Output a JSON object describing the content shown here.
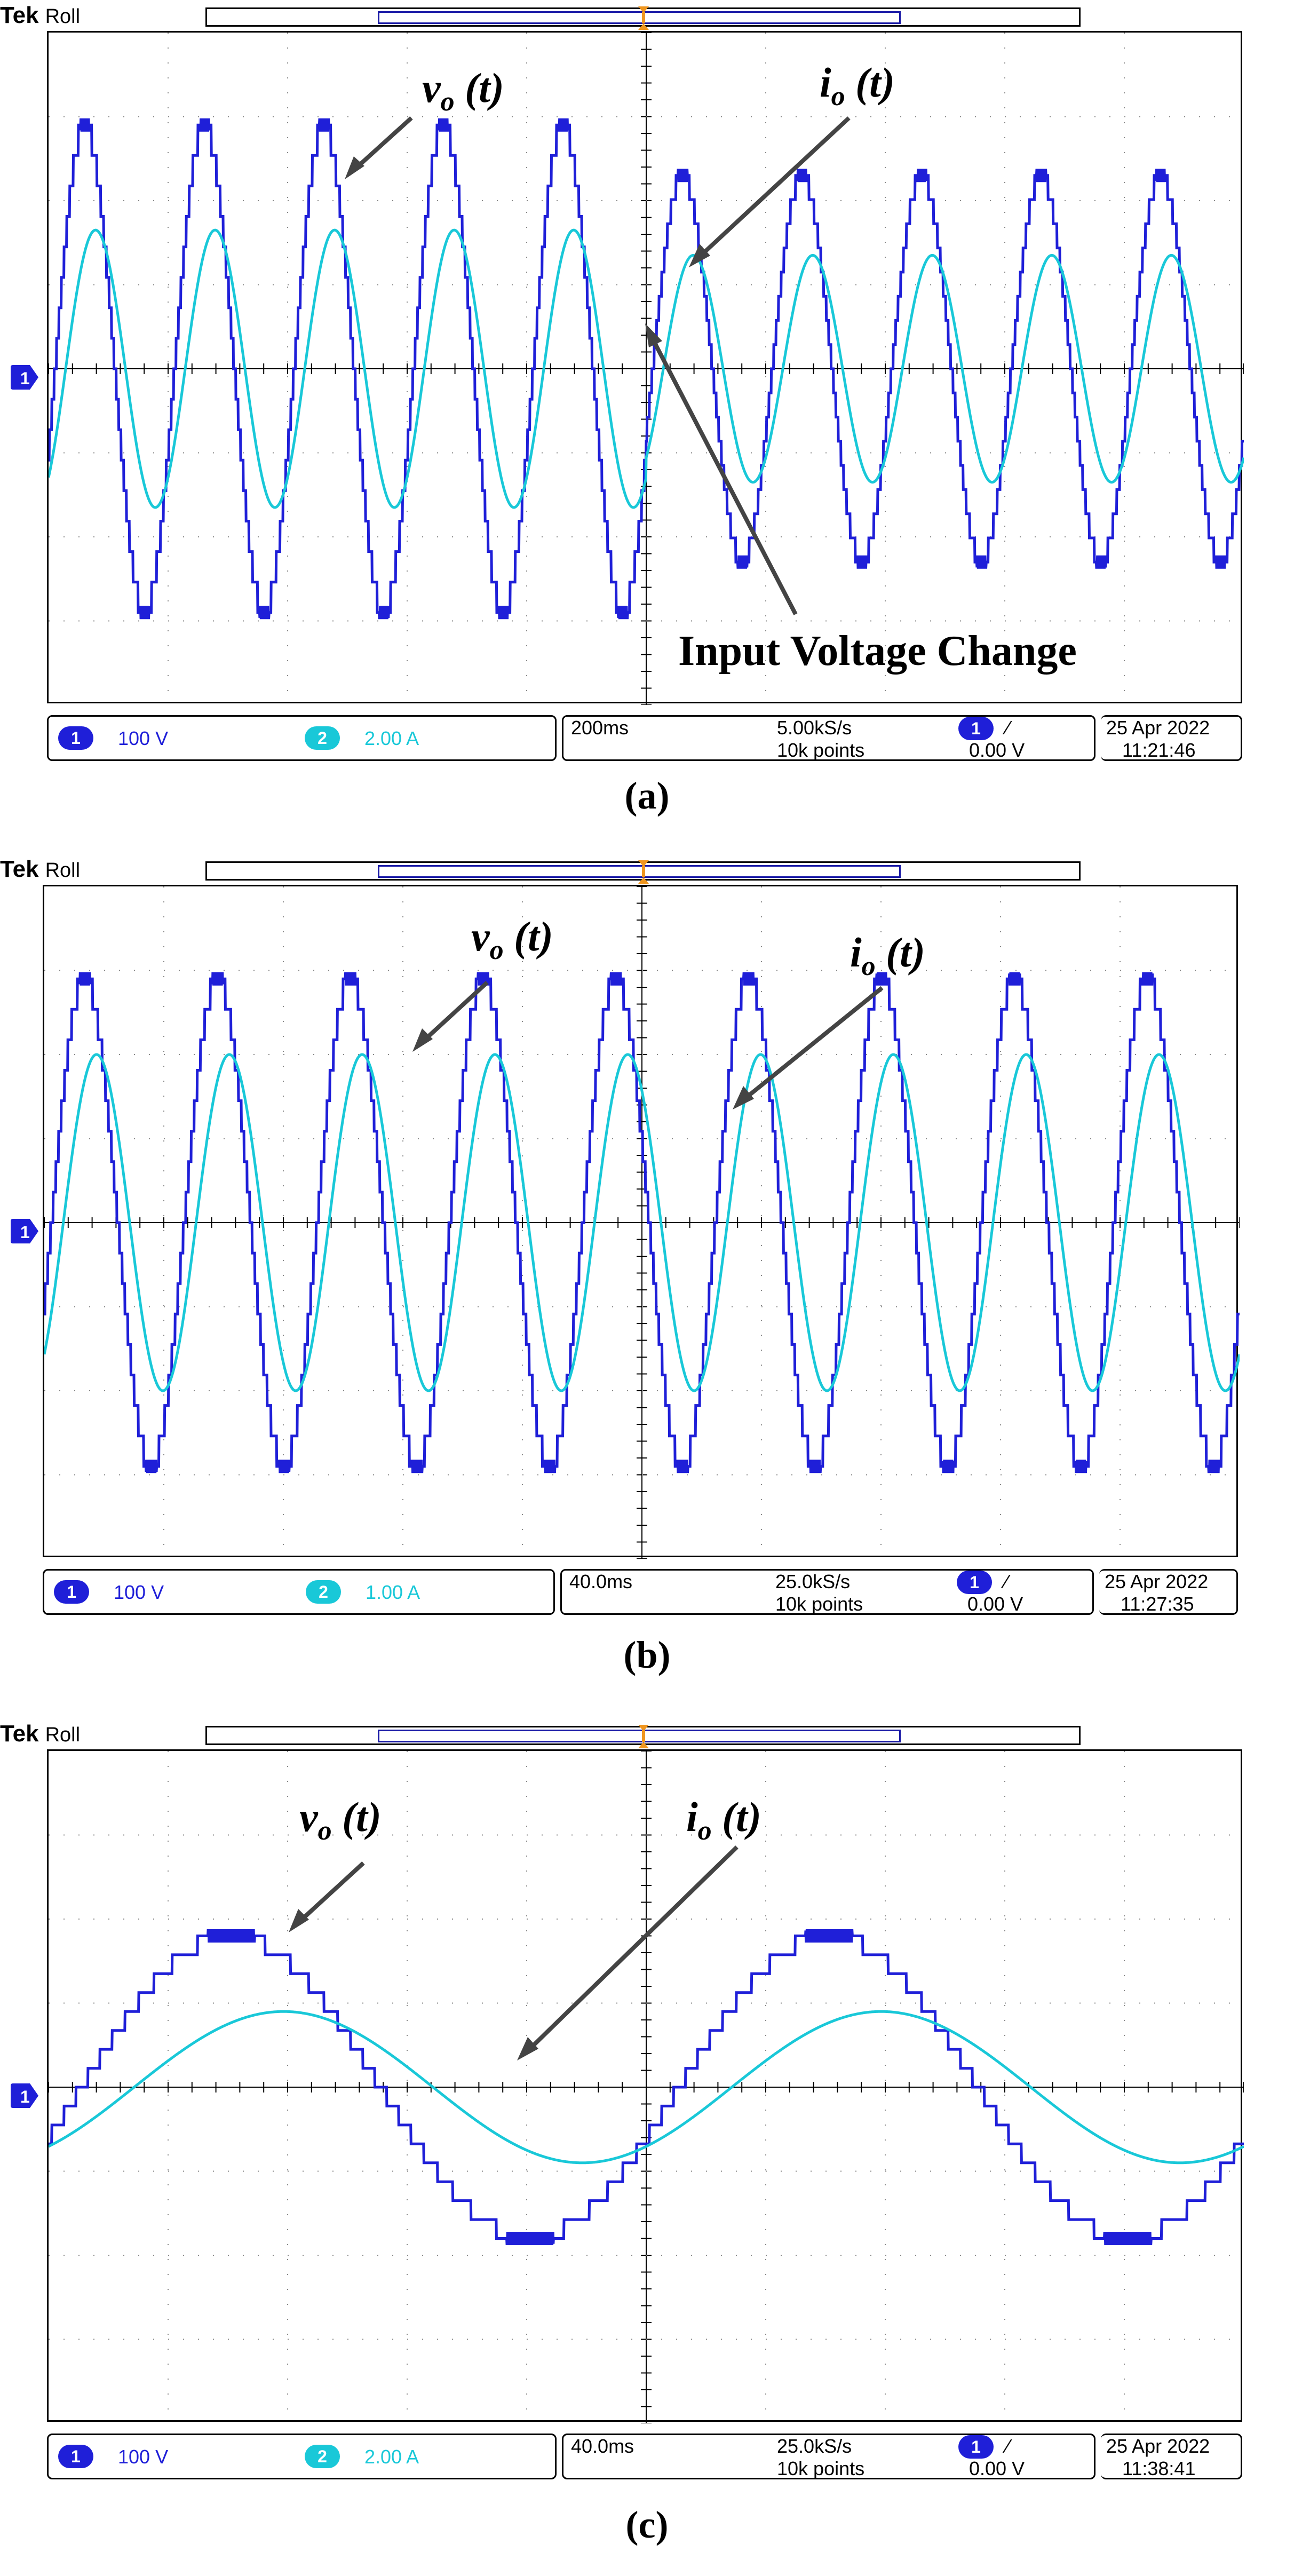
{
  "chart_data": [
    {
      "type": "line",
      "panel_label": "(a)",
      "brand": "Tek",
      "mode": "Roll",
      "annotations": [
        {
          "name": "vo-label",
          "sym": "v",
          "sub": "o",
          "arg": " (t)"
        },
        {
          "name": "io-label",
          "sym": "i",
          "sub": "o",
          "arg": " (t)"
        },
        {
          "name": "event-label",
          "text": "Input Voltage Change"
        }
      ],
      "series": [
        {
          "name": "v_o(t)",
          "channel": 1,
          "shape": "staircase sine",
          "unit": "V",
          "amplitude_divs_before": 2.9,
          "amplitude_divs_after": 2.3,
          "cycles": 10
        },
        {
          "name": "i_o(t)",
          "channel": 2,
          "shape": "sine",
          "unit": "A",
          "amplitude_divs_before": 1.65,
          "amplitude_divs_after": 1.35,
          "cycles": 10
        }
      ],
      "event_at_div": 5,
      "grid": {
        "x_divs": 10,
        "y_divs": 8,
        "shown": true
      },
      "status": {
        "ch1_num": "1",
        "ch1_scale": "100 V",
        "ch2_num": "2",
        "ch2_scale": "2.00 A",
        "timebase": "200ms",
        "sample_rate": "5.00kS/s",
        "record_length": "10k points",
        "trig_num": "1",
        "trig_slope": "⁄",
        "trig_level": "0.00 V",
        "date": "25 Apr 2022",
        "time": "11:21:46"
      },
      "colors": {
        "ch1": "#1f1fd8",
        "ch2": "#19c8d8"
      }
    },
    {
      "type": "line",
      "panel_label": "(b)",
      "brand": "Tek",
      "mode": "Roll",
      "annotations": [
        {
          "name": "vo-label",
          "sym": "v",
          "sub": "o",
          "arg": " (t)"
        },
        {
          "name": "io-label",
          "sym": "i",
          "sub": "o",
          "arg": " (t)"
        }
      ],
      "series": [
        {
          "name": "v_o(t)",
          "channel": 1,
          "shape": "staircase sine",
          "unit": "V",
          "amplitude_divs": 2.9,
          "cycles": 9
        },
        {
          "name": "i_o(t)",
          "channel": 2,
          "shape": "sine",
          "unit": "A",
          "amplitude_divs": 2.0,
          "cycles": 9
        }
      ],
      "grid": {
        "x_divs": 10,
        "y_divs": 8,
        "shown": true
      },
      "status": {
        "ch1_num": "1",
        "ch1_scale": "100 V",
        "ch2_num": "2",
        "ch2_scale": "1.00 A",
        "timebase": "40.0ms",
        "sample_rate": "25.0kS/s",
        "record_length": "10k points",
        "trig_num": "1",
        "trig_slope": "⁄",
        "trig_level": "0.00 V",
        "date": "25 Apr 2022",
        "time": "11:27:35"
      },
      "colors": {
        "ch1": "#1f1fd8",
        "ch2": "#19c8d8"
      }
    },
    {
      "type": "line",
      "panel_label": "(c)",
      "brand": "Tek",
      "mode": "Roll",
      "annotations": [
        {
          "name": "vo-label",
          "sym": "v",
          "sub": "o",
          "arg": " (t)"
        },
        {
          "name": "io-label",
          "sym": "i",
          "sub": "o",
          "arg": " (t)"
        }
      ],
      "series": [
        {
          "name": "v_o(t)",
          "channel": 1,
          "shape": "staircase sine",
          "unit": "V",
          "amplitude_divs": 1.8,
          "cycles": 2
        },
        {
          "name": "i_o(t)",
          "channel": 2,
          "shape": "sine",
          "unit": "A",
          "amplitude_divs": 0.9,
          "cycles": 2
        }
      ],
      "grid": {
        "x_divs": 10,
        "y_divs": 8,
        "shown": true
      },
      "status": {
        "ch1_num": "1",
        "ch1_scale": "100 V",
        "ch2_num": "2",
        "ch2_scale": "2.00 A",
        "timebase": "40.0ms",
        "sample_rate": "25.0kS/s",
        "record_length": "10k points",
        "trig_num": "1",
        "trig_slope": "⁄",
        "trig_level": "0.00 V",
        "date": "25 Apr 2022",
        "time": "11:38:41"
      },
      "colors": {
        "ch1": "#1f1fd8",
        "ch2": "#19c8d8"
      }
    }
  ]
}
